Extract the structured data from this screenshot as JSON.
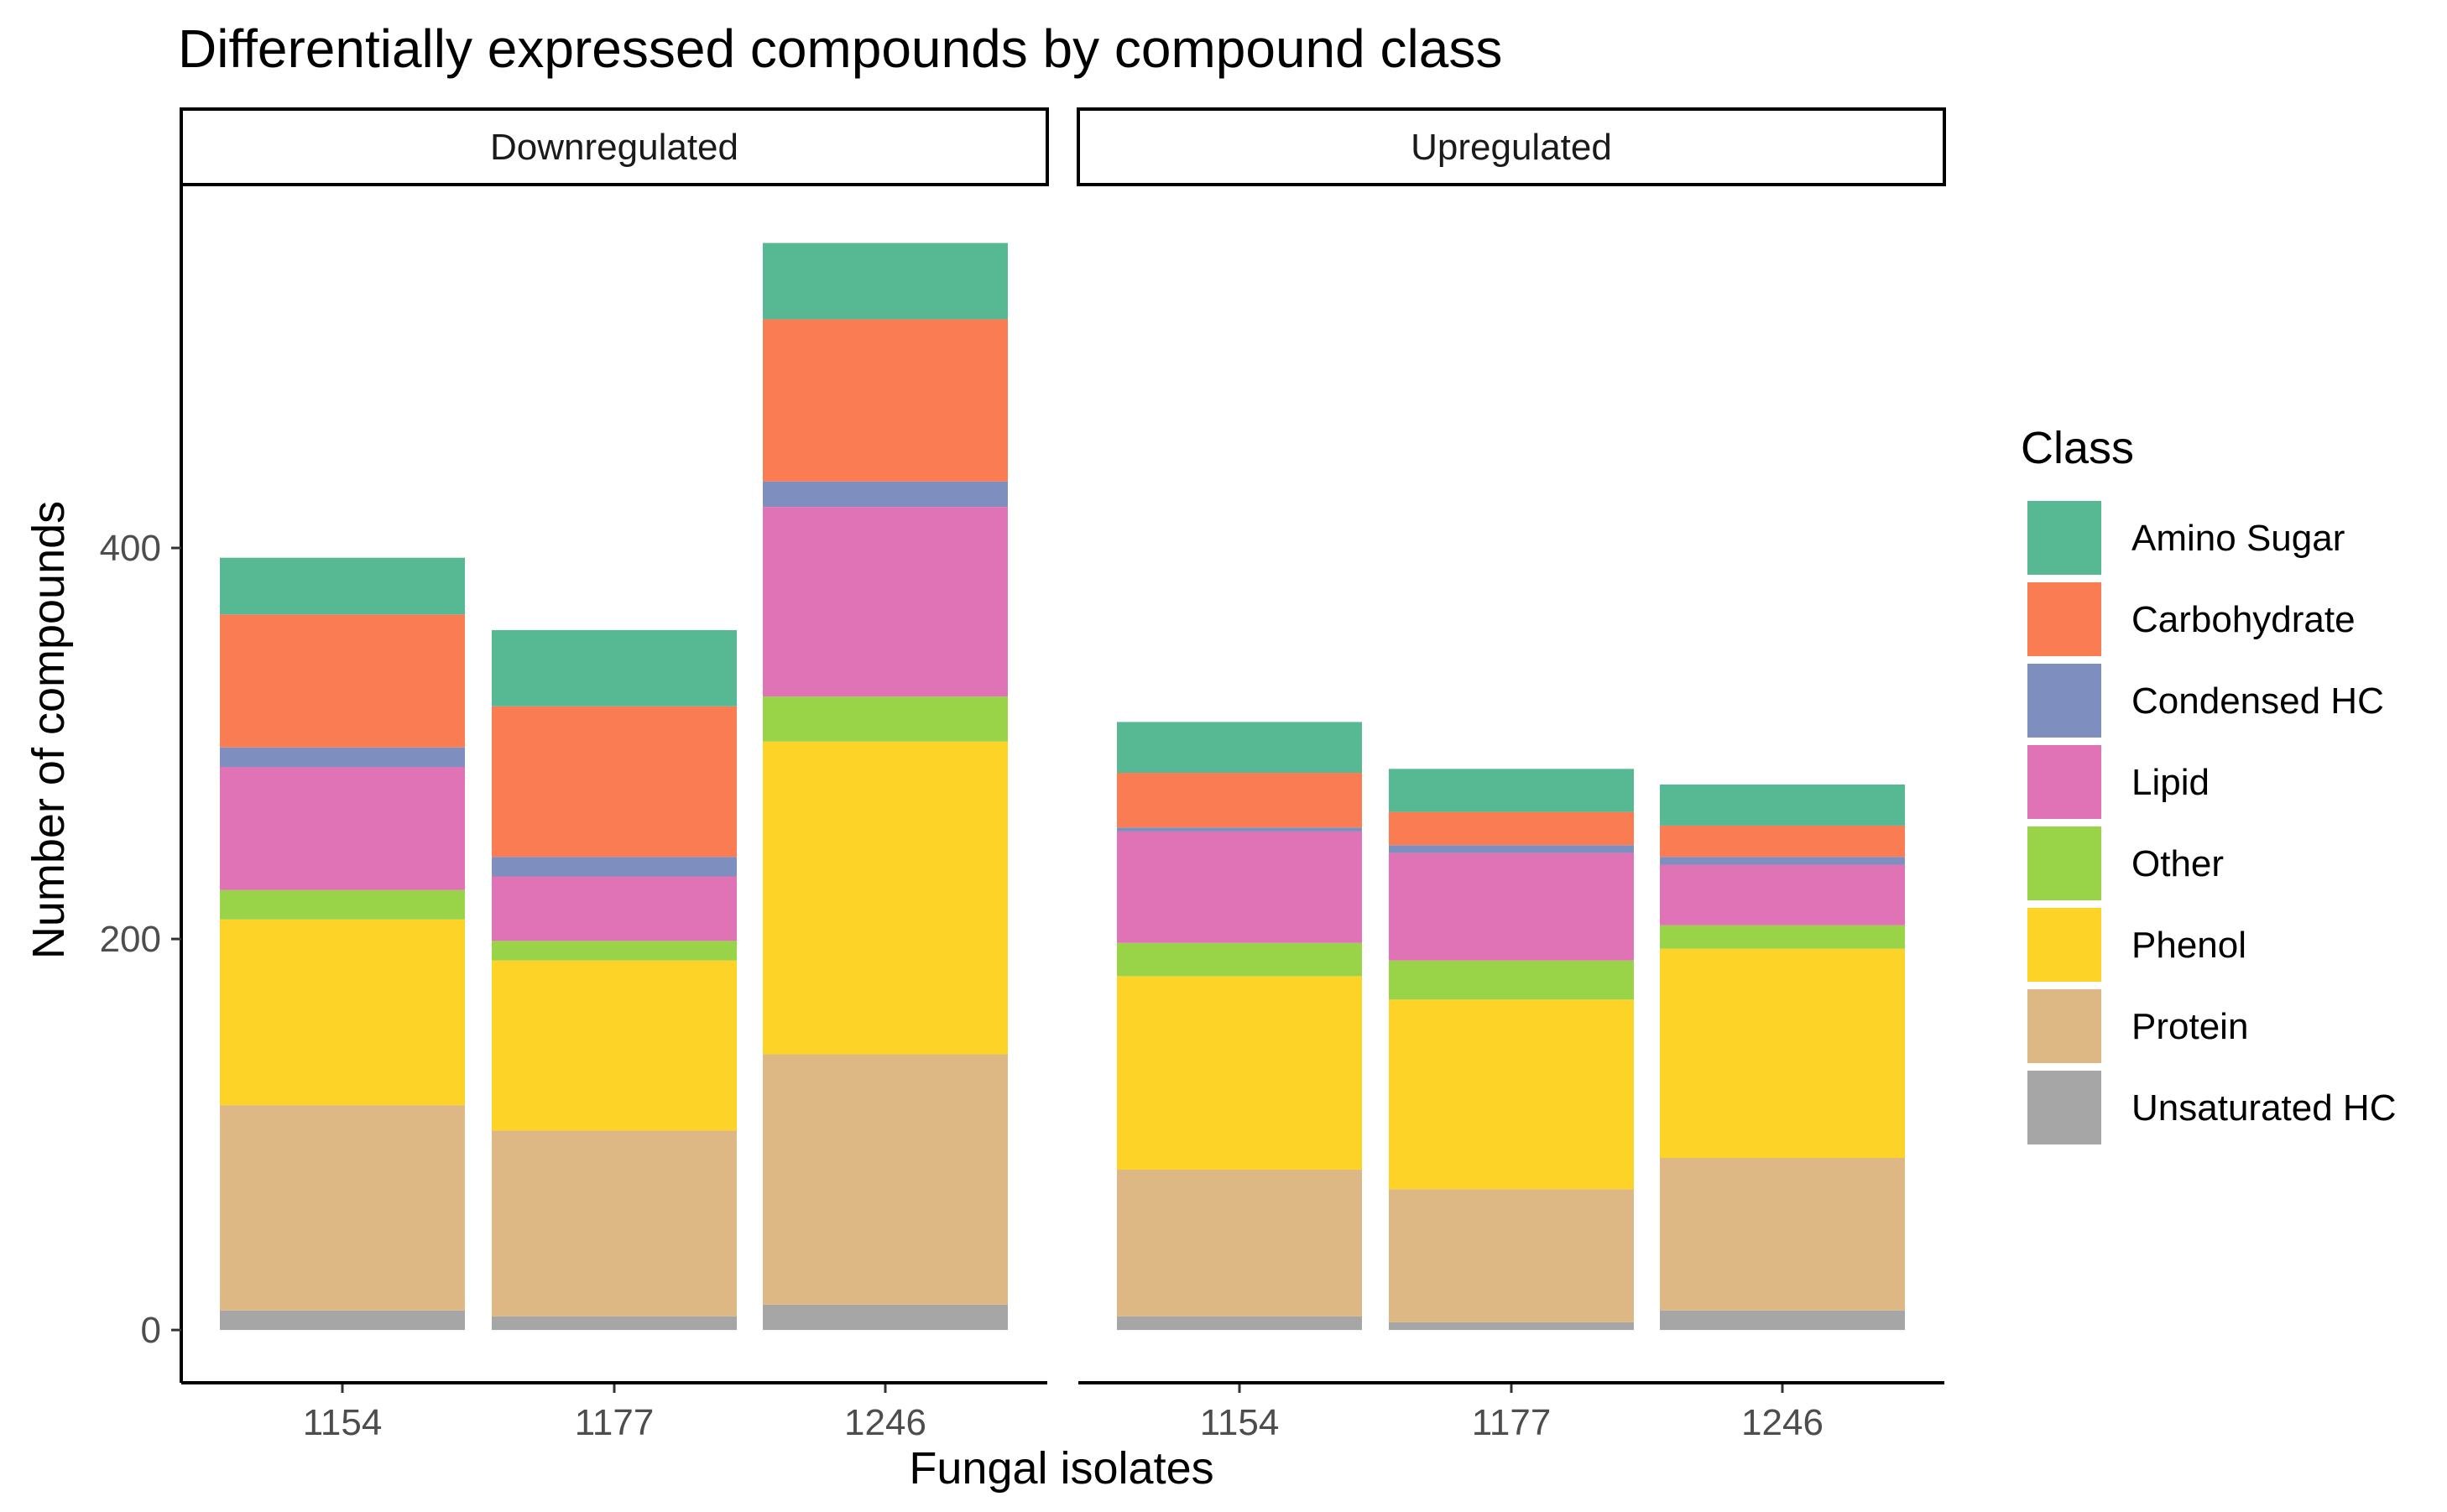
{
  "chart_data": {
    "type": "bar",
    "stacked": true,
    "title": "Differentially expressed compounds by compound class",
    "xlabel": "Fungal isolates",
    "ylabel": "Number of compounds",
    "ylim": [
      -27,
      585
    ],
    "yticks": [
      0,
      200,
      400
    ],
    "legend_title": "Class",
    "legend_position": "right",
    "grid": false,
    "categories": [
      "1154",
      "1177",
      "1246"
    ],
    "classes": [
      "Amino Sugar",
      "Carbohydrate",
      "Condensed HC",
      "Lipid",
      "Other",
      "Phenol",
      "Protein",
      "Unsaturated HC"
    ],
    "colors": {
      "Amino Sugar": "#57b994",
      "Carbohydrate": "#f97c52",
      "Condensed HC": "#7e8fbf",
      "Lipid": "#e072b6",
      "Other": "#99d347",
      "Phenol": "#fdd328",
      "Protein": "#ddb884",
      "Unsaturated HC": "#a6a6a6"
    },
    "panels": [
      {
        "name": "Downregulated",
        "bars": {
          "1154": {
            "Unsaturated HC": 10,
            "Protein": 105,
            "Phenol": 95,
            "Other": 15,
            "Lipid": 63,
            "Condensed HC": 10,
            "Carbohydrate": 68,
            "Amino Sugar": 29
          },
          "1177": {
            "Unsaturated HC": 7,
            "Protein": 95,
            "Phenol": 87,
            "Other": 10,
            "Lipid": 33,
            "Condensed HC": 10,
            "Carbohydrate": 77,
            "Amino Sugar": 39
          },
          "1246": {
            "Unsaturated HC": 13,
            "Protein": 128,
            "Phenol": 160,
            "Other": 23,
            "Lipid": 97,
            "Condensed HC": 13,
            "Carbohydrate": 83,
            "Amino Sugar": 39
          }
        }
      },
      {
        "name": "Upregulated",
        "bars": {
          "1154": {
            "Unsaturated HC": 7,
            "Protein": 75,
            "Phenol": 99,
            "Other": 17,
            "Lipid": 57,
            "Condensed HC": 2,
            "Carbohydrate": 28,
            "Amino Sugar": 26
          },
          "1177": {
            "Unsaturated HC": 4,
            "Protein": 68,
            "Phenol": 97,
            "Other": 20,
            "Lipid": 55,
            "Condensed HC": 4,
            "Carbohydrate": 17,
            "Amino Sugar": 22
          },
          "1246": {
            "Unsaturated HC": 10,
            "Protein": 78,
            "Phenol": 107,
            "Other": 12,
            "Lipid": 31,
            "Condensed HC": 4,
            "Carbohydrate": 16,
            "Amino Sugar": 21
          }
        }
      }
    ]
  }
}
